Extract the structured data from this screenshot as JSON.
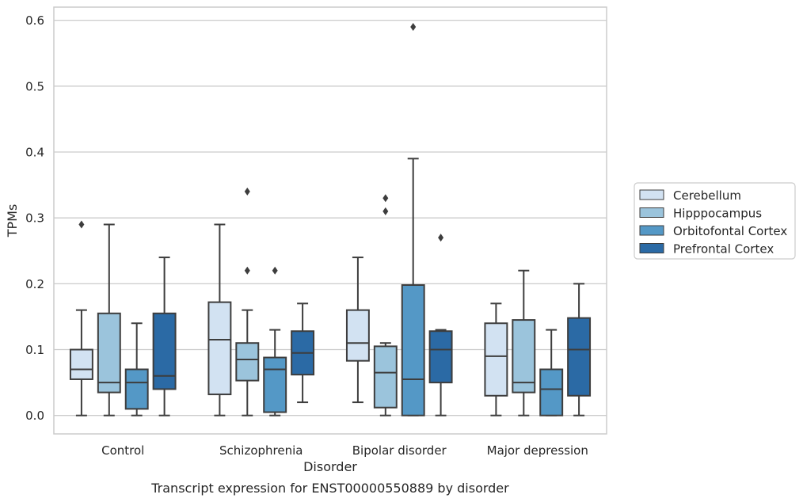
{
  "chart_data": {
    "type": "box",
    "title": "",
    "caption": "Transcript expression for ENST00000550889 by disorder",
    "xlabel": "Disorder",
    "ylabel": "TPMs",
    "ylim": [
      -0.028,
      0.62
    ],
    "yticks": [
      "0.0",
      "0.1",
      "0.2",
      "0.3",
      "0.4",
      "0.5",
      "0.6"
    ],
    "grid": true,
    "legend_position": "right",
    "categories": [
      "Control",
      "Schizophrenia",
      "Bipolar disorder",
      "Major depression"
    ],
    "series": [
      {
        "name": "Cerebellum",
        "color": "#d2e2f2",
        "boxes": [
          {
            "low": 0.0,
            "q1": 0.055,
            "median": 0.07,
            "q3": 0.1,
            "high": 0.16,
            "outliers": [
              0.29
            ]
          },
          {
            "low": 0.0,
            "q1": 0.032,
            "median": 0.115,
            "q3": 0.172,
            "high": 0.29,
            "outliers": []
          },
          {
            "low": 0.02,
            "q1": 0.083,
            "median": 0.11,
            "q3": 0.16,
            "high": 0.24,
            "outliers": []
          },
          {
            "low": 0.0,
            "q1": 0.03,
            "median": 0.09,
            "q3": 0.14,
            "high": 0.17,
            "outliers": []
          }
        ]
      },
      {
        "name": "Hipppocampus",
        "color": "#9bc4dc",
        "boxes": [
          {
            "low": 0.0,
            "q1": 0.035,
            "median": 0.05,
            "q3": 0.155,
            "high": 0.29,
            "outliers": []
          },
          {
            "low": 0.0,
            "q1": 0.053,
            "median": 0.085,
            "q3": 0.11,
            "high": 0.16,
            "outliers": [
              0.34,
              0.22
            ]
          },
          {
            "low": 0.0,
            "q1": 0.012,
            "median": 0.065,
            "q3": 0.105,
            "high": 0.11,
            "outliers": [
              0.33,
              0.31
            ]
          },
          {
            "low": 0.0,
            "q1": 0.035,
            "median": 0.05,
            "q3": 0.145,
            "high": 0.22,
            "outliers": []
          }
        ]
      },
      {
        "name": "Orbitofontal Cortex",
        "color": "#5498c6",
        "boxes": [
          {
            "low": 0.0,
            "q1": 0.01,
            "median": 0.05,
            "q3": 0.07,
            "high": 0.14,
            "outliers": []
          },
          {
            "low": 0.0,
            "q1": 0.005,
            "median": 0.07,
            "q3": 0.088,
            "high": 0.13,
            "outliers": [
              0.22
            ]
          },
          {
            "low": 0.0,
            "q1": 0.0,
            "median": 0.055,
            "q3": 0.198,
            "high": 0.39,
            "outliers": [
              0.59
            ]
          },
          {
            "low": 0.0,
            "q1": 0.0,
            "median": 0.04,
            "q3": 0.07,
            "high": 0.13,
            "outliers": []
          }
        ]
      },
      {
        "name": "Prefrontal Cortex",
        "color": "#2b6aa5",
        "boxes": [
          {
            "low": 0.0,
            "q1": 0.04,
            "median": 0.06,
            "q3": 0.155,
            "high": 0.24,
            "outliers": []
          },
          {
            "low": 0.02,
            "q1": 0.062,
            "median": 0.095,
            "q3": 0.128,
            "high": 0.17,
            "outliers": []
          },
          {
            "low": 0.0,
            "q1": 0.05,
            "median": 0.1,
            "q3": 0.128,
            "high": 0.13,
            "outliers": [
              0.27
            ]
          },
          {
            "low": 0.0,
            "q1": 0.03,
            "median": 0.1,
            "q3": 0.148,
            "high": 0.2,
            "outliers": []
          }
        ]
      }
    ]
  }
}
